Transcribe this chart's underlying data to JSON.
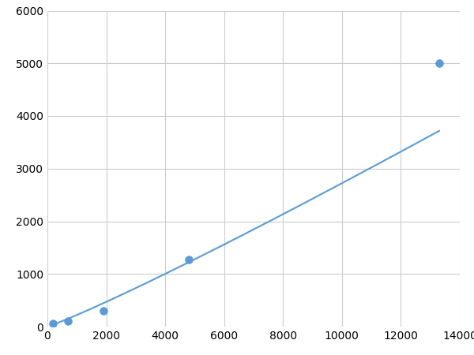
{
  "x": [
    200,
    700,
    1900,
    4800,
    13300
  ],
  "y": [
    60,
    100,
    300,
    1280,
    5000
  ],
  "line_color": "#5b9bd5",
  "marker_color": "#5b9bd5",
  "marker_size": 7,
  "line_width": 1.5,
  "xlim": [
    0,
    14000
  ],
  "ylim": [
    0,
    6000
  ],
  "xticks": [
    0,
    2000,
    4000,
    6000,
    8000,
    10000,
    12000,
    14000
  ],
  "yticks": [
    0,
    1000,
    2000,
    3000,
    4000,
    5000,
    6000
  ],
  "grid_color": "#cccccc",
  "background_color": "#ffffff",
  "tick_label_fontsize": 10
}
